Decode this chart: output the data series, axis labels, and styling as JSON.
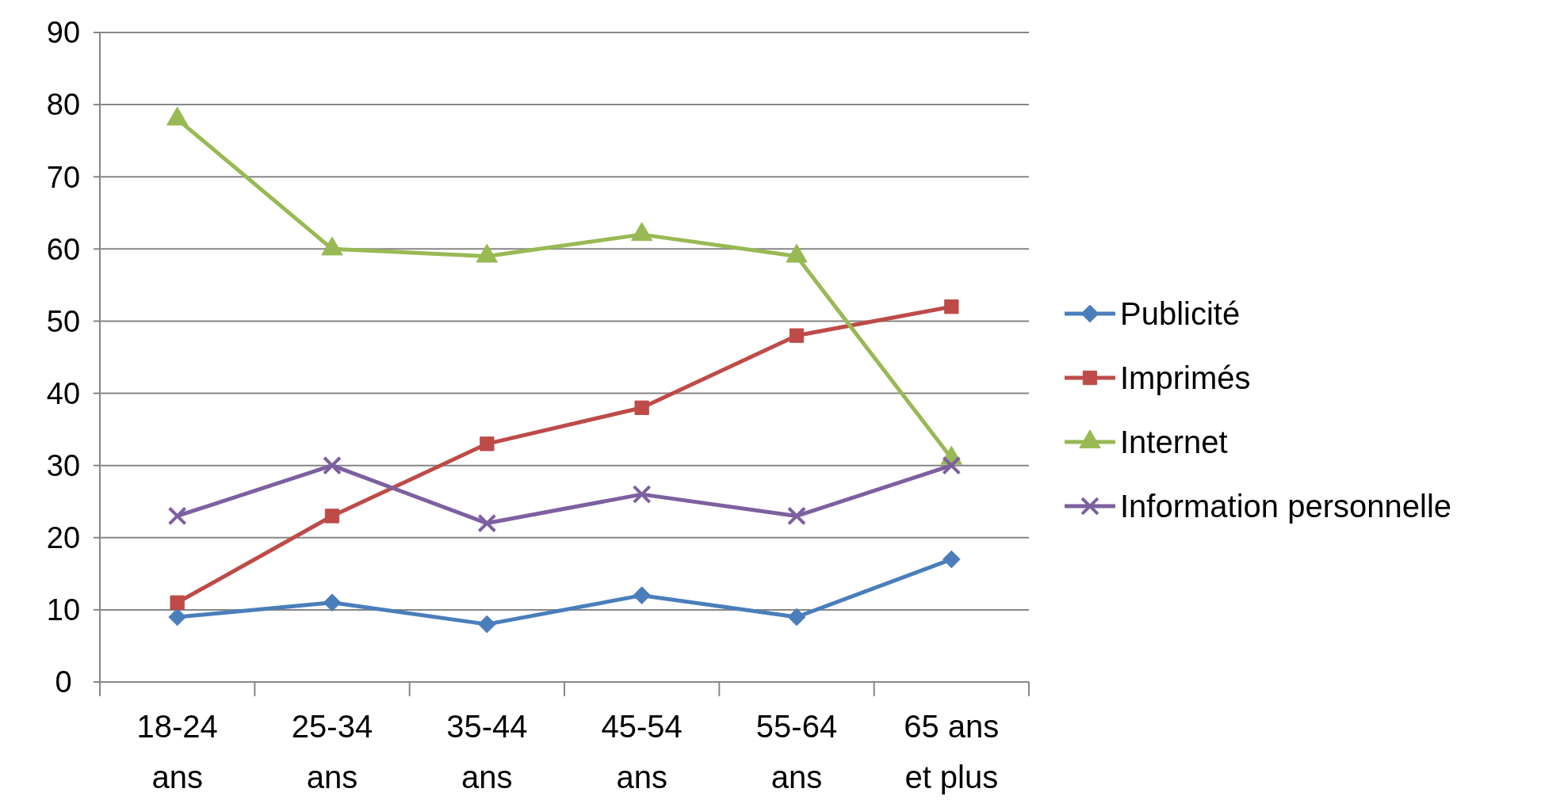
{
  "chart_data": {
    "type": "line",
    "categories": [
      "18-24\nans",
      "25-34\nans",
      "35-44\nans",
      "45-54\nans",
      "55-64\nans",
      "65 ans\net plus"
    ],
    "series": [
      {
        "name": "Publicité",
        "color": "#4a7ebb",
        "marker": "diamond",
        "values": [
          9,
          11,
          8,
          12,
          9,
          17
        ]
      },
      {
        "name": "Imprimés",
        "color": "#be4b48",
        "marker": "square",
        "values": [
          11,
          23,
          33,
          38,
          48,
          52
        ]
      },
      {
        "name": "Internet",
        "color": "#98b954",
        "marker": "triangle",
        "values": [
          78,
          60,
          59,
          62,
          59,
          31
        ]
      },
      {
        "name": "Information personnelle",
        "color": "#7d60a0",
        "marker": "cross",
        "values": [
          23,
          30,
          22,
          26,
          23,
          30
        ]
      }
    ],
    "ylim": [
      0,
      90
    ],
    "yticks": [
      0,
      10,
      20,
      30,
      40,
      50,
      60,
      70,
      80,
      90
    ],
    "grid": "y",
    "legend": "right"
  }
}
